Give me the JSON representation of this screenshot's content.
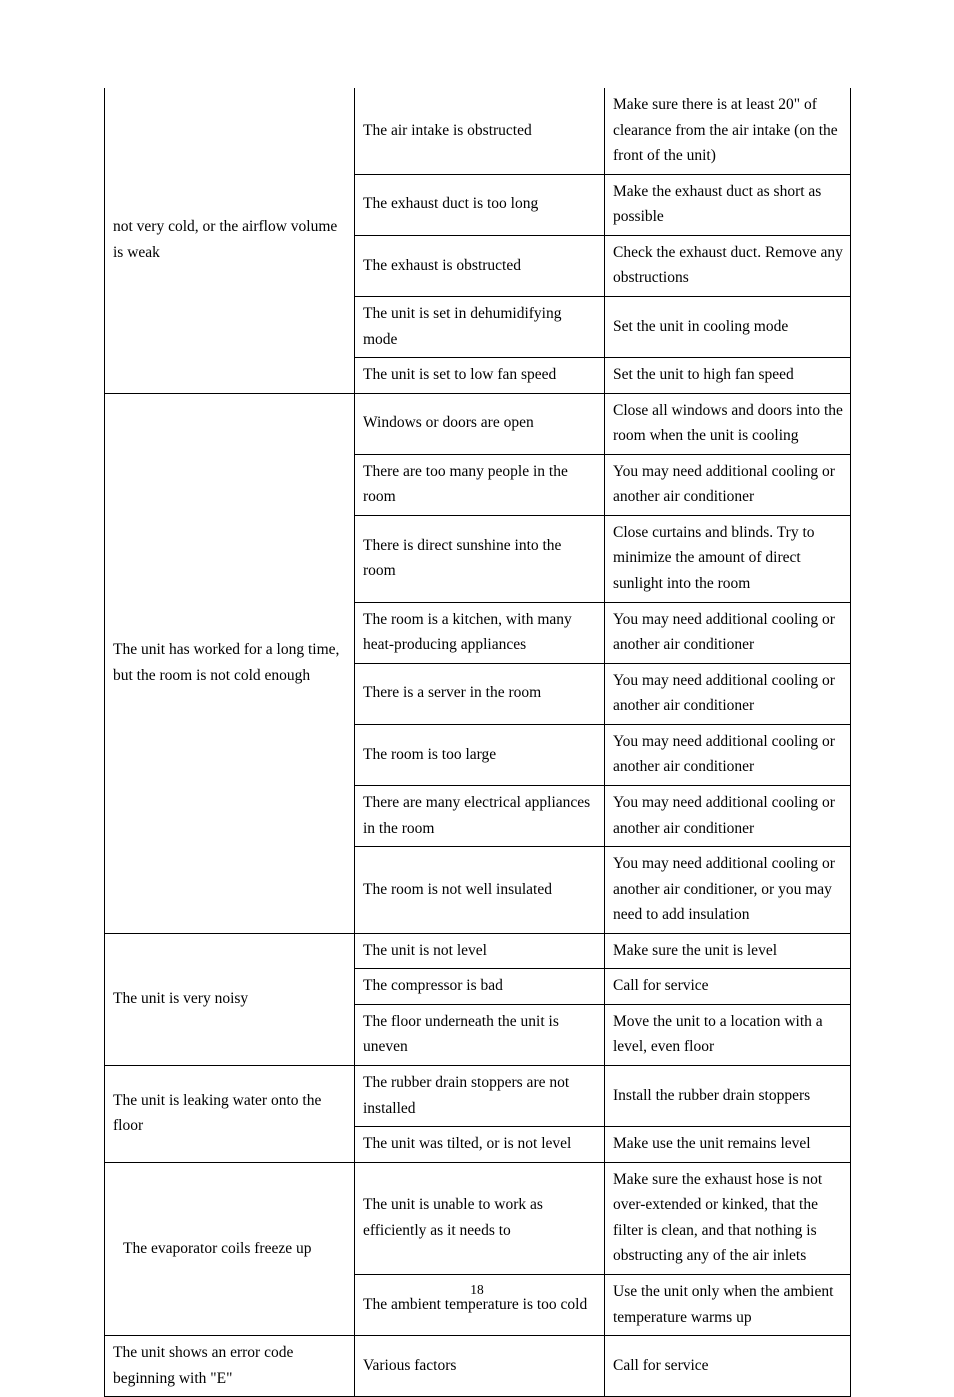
{
  "rows": [
    {
      "problem": "not very cold, or the airflow volume is weak",
      "cause": "The air intake is obstructed",
      "solution": "Make sure there is at least 20\" of clearance from the air intake (on the front of the unit)",
      "span": 5,
      "indent": false,
      "noTop": true
    },
    {
      "cause": "The exhaust duct is too long",
      "solution": "Make the exhaust duct as short as possible"
    },
    {
      "cause": "The exhaust is obstructed",
      "solution": "Check the exhaust duct. Remove any obstructions"
    },
    {
      "cause": "The unit is set in dehumidifying mode",
      "solution": "Set the unit in cooling mode"
    },
    {
      "cause": "The unit is set to low fan speed",
      "solution": "Set the unit to high fan speed"
    },
    {
      "problem": "The unit has worked for a long time, but the room is not cold enough",
      "cause": "Windows or doors are open",
      "solution": "Close all windows and doors into the room when the unit is cooling",
      "span": 8,
      "indent": false,
      "noTop": false
    },
    {
      "cause": "There are too many people in the room",
      "solution": "You may need additional cooling or another air conditioner"
    },
    {
      "cause": "There is direct sunshine into the room",
      "solution": "Close curtains and blinds. Try to minimize the amount of direct sunlight into the room"
    },
    {
      "cause": "The room is a kitchen, with many heat-producing appliances",
      "solution": "You may need additional cooling or another air conditioner"
    },
    {
      "cause": "There is a server in the room",
      "solution": "You may need additional cooling or another air conditioner"
    },
    {
      "cause": "The room is too large",
      "solution": "You may need additional cooling or another air conditioner"
    },
    {
      "cause": "There are many electrical appliances in the room",
      "solution": "You may need additional cooling or another air conditioner"
    },
    {
      "cause": "The room is not well insulated",
      "solution": "You may need additional cooling or another air conditioner, or you may need to add insulation"
    },
    {
      "problem": "The unit is very noisy",
      "cause": "The unit is not level",
      "solution": "Make sure the unit is level",
      "span": 3,
      "indent": false,
      "noTop": false
    },
    {
      "cause": "The compressor is bad",
      "solution": "Call for service"
    },
    {
      "cause": "The floor underneath the unit is uneven",
      "solution": "Move the unit to a location with a level, even floor"
    },
    {
      "problem": "The unit is leaking water onto the floor",
      "cause": "The rubber drain stoppers are not installed",
      "solution": "Install the rubber drain stoppers",
      "span": 2,
      "indent": false,
      "noTop": false
    },
    {
      "cause": "The unit was tilted, or is not level",
      "solution": "Make use the unit remains level"
    },
    {
      "problem": "The evaporator coils freeze up",
      "cause": "The unit is unable to work as efficiently as it needs to",
      "solution": "Make sure the exhaust hose is not over-extended or kinked, that the filter is clean, and that nothing is obstructing any of the air inlets",
      "span": 2,
      "indent": true,
      "noTop": false
    },
    {
      "cause": "The ambient temperature is too cold",
      "solution": "Use the unit only when the ambient temperature warms up"
    },
    {
      "problem": "The unit shows an error code beginning with \"E\"",
      "cause": "Various factors",
      "solution": "Call for service",
      "span": 1,
      "indent": false,
      "noTop": false
    }
  ],
  "pageNumber": "18"
}
